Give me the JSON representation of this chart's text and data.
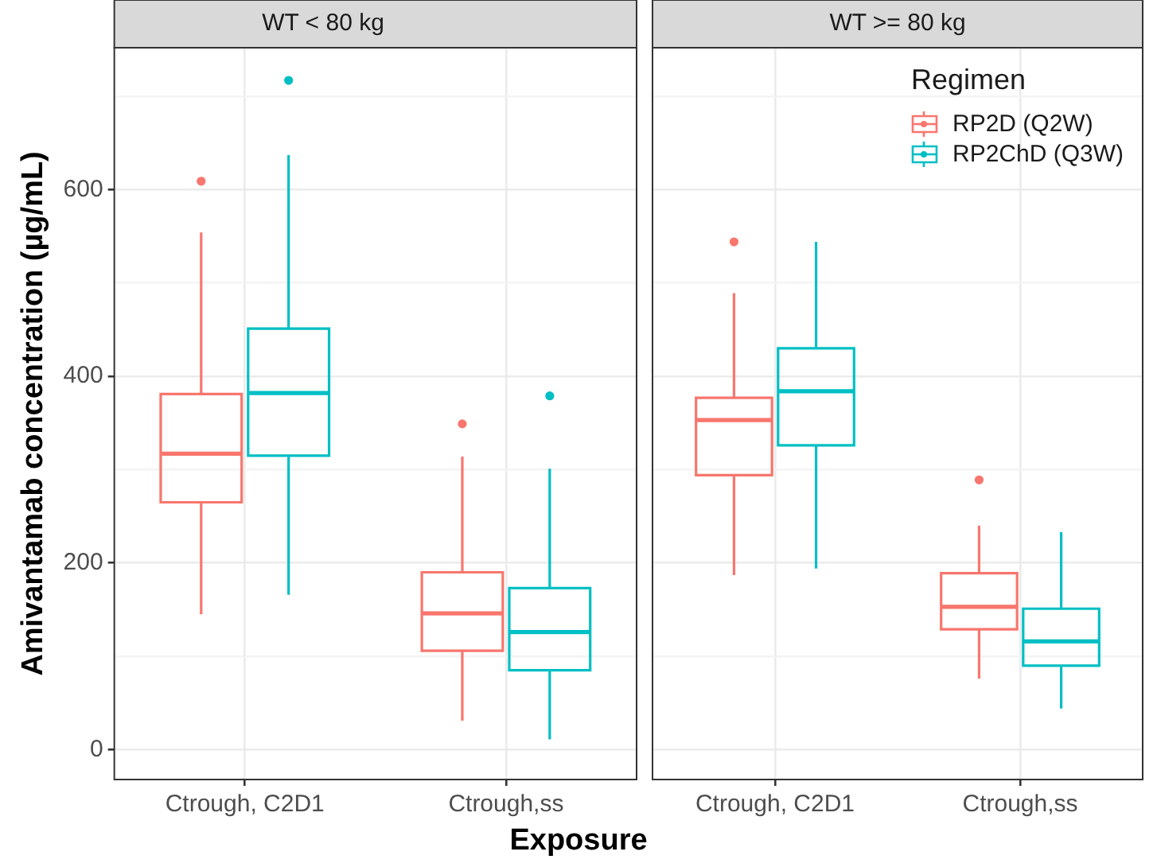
{
  "chart_data": [
    {
      "type": "box",
      "title": "WT < 80 kg",
      "xlabel": "Exposure",
      "ylabel": "Amivantamab concentration (µg/mL)",
      "categories": [
        "Ctrough, C2D1",
        "Ctrough,ss"
      ],
      "ylim": [
        -32,
        752
      ],
      "yticks": [
        0,
        {
          "value": 100,
          "label": null
        },
        200,
        {
          "value": 300,
          "label": null
        },
        400,
        {
          "value": 500,
          "label": null
        },
        600,
        {
          "value": 700,
          "label": null
        }
      ],
      "grid": true,
      "legend": false,
      "series": [
        {
          "color": "#f8766d",
          "boxes": [
            {
              "low": 145,
              "q1": 265,
              "median": 317,
              "q3": 381,
              "high": 554,
              "outliers": [
                609
              ]
            },
            {
              "low": 31,
              "q1": 106,
              "median": 146,
              "q3": 190,
              "high": 314,
              "outliers": [
                349
              ]
            }
          ]
        },
        {
          "color": "#00bfc4",
          "boxes": [
            {
              "low": 166,
              "q1": 315,
              "median": 382,
              "q3": 451,
              "high": 637,
              "outliers": [
                717
              ]
            },
            {
              "low": 11,
              "q1": 85,
              "median": 126,
              "q3": 173,
              "high": 301,
              "outliers": [
                379
              ]
            }
          ]
        }
      ]
    },
    {
      "type": "box",
      "title": "WT >= 80 kg",
      "categories": [
        "Ctrough, C2D1",
        "Ctrough,ss"
      ],
      "ylim": [
        -32,
        752
      ],
      "yticks": [
        0,
        {
          "value": 100,
          "label": null
        },
        200,
        {
          "value": 300,
          "label": null
        },
        400,
        {
          "value": 500,
          "label": null
        },
        600,
        {
          "value": 700,
          "label": null
        }
      ],
      "tick_labels": "x",
      "grid": true,
      "legend": "top right",
      "legend_title": "Regimen",
      "series": [
        {
          "name": "RP2D (Q2W)",
          "color": "#f8766d",
          "boxes": [
            {
              "low": 187,
              "q1": 294,
              "median": 353,
              "q3": 377,
              "high": 489,
              "outliers": [
                544
              ]
            },
            {
              "low": 76,
              "q1": 129,
              "median": 153,
              "q3": 189,
              "high": 240,
              "outliers": [
                289
              ]
            }
          ]
        },
        {
          "name": "RP2ChD (Q3W)",
          "color": "#00bfc4",
          "boxes": [
            {
              "low": 194,
              "q1": 326,
              "median": 384,
              "q3": 430,
              "high": 544
            },
            {
              "low": 44,
              "q1": 90,
              "median": 116,
              "q3": 151,
              "high": 233
            }
          ]
        }
      ]
    }
  ]
}
